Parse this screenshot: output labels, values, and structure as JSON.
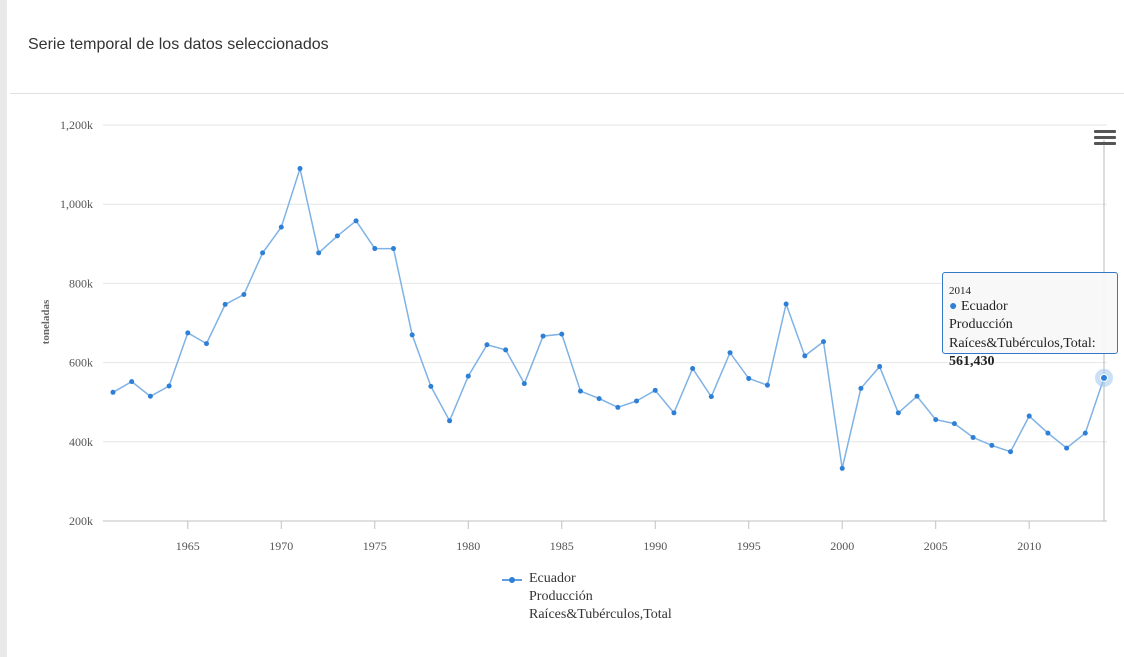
{
  "panel": {
    "title": "Serie temporal de los datos seleccionados"
  },
  "chart_data": {
    "type": "line",
    "ylabel": "toneladas",
    "xlabel": "",
    "xlim": [
      1961,
      2014
    ],
    "ylim": [
      200000,
      1200000
    ],
    "x_ticks": [
      1965,
      1970,
      1975,
      1980,
      1985,
      1990,
      1995,
      2000,
      2005,
      2010
    ],
    "y_ticks": [
      200000,
      400000,
      600000,
      800000,
      1000000,
      1200000
    ],
    "y_tick_labels": [
      "200k",
      "400k",
      "600k",
      "800k",
      "1,000k",
      "1,200k"
    ],
    "grid": true,
    "legend_position": "bottom-center",
    "series": [
      {
        "name": "Ecuador Producción Raíces&Tubérculos,Total",
        "color": "#2e7fd6",
        "x": [
          1961,
          1962,
          1963,
          1964,
          1965,
          1966,
          1967,
          1968,
          1969,
          1970,
          1971,
          1972,
          1973,
          1974,
          1975,
          1976,
          1977,
          1978,
          1979,
          1980,
          1981,
          1982,
          1983,
          1984,
          1985,
          1986,
          1987,
          1988,
          1989,
          1990,
          1991,
          1992,
          1993,
          1994,
          1995,
          1996,
          1997,
          1998,
          1999,
          2000,
          2001,
          2002,
          2003,
          2004,
          2005,
          2006,
          2007,
          2008,
          2009,
          2010,
          2011,
          2012,
          2013,
          2014
        ],
        "y": [
          525000,
          552000,
          515000,
          541000,
          675000,
          648000,
          747000,
          772000,
          877000,
          942000,
          1090000,
          877000,
          920000,
          958000,
          888000,
          888000,
          670000,
          540000,
          453000,
          566000,
          645000,
          632000,
          547000,
          667000,
          672000,
          528000,
          509000,
          487000,
          503000,
          530000,
          473000,
          585000,
          514000,
          625000,
          560000,
          543000,
          748000,
          617000,
          653000,
          333000,
          535000,
          590000,
          473000,
          515000,
          456000,
          446000,
          411000,
          391000,
          375000,
          465000,
          422000,
          384000,
          422000,
          561430
        ]
      }
    ]
  },
  "legend": {
    "line1": "Ecuador",
    "line2": "Producción",
    "line3": "Raíces&Tubérculos,Total"
  },
  "tooltip": {
    "year": "2014",
    "bullet": "●",
    "country": "Ecuador",
    "measure": "Producción",
    "item_label": "Raíces&Tubérculos,Total:",
    "value": "561,430"
  },
  "menu": {
    "icon": "hamburger-menu-icon"
  }
}
